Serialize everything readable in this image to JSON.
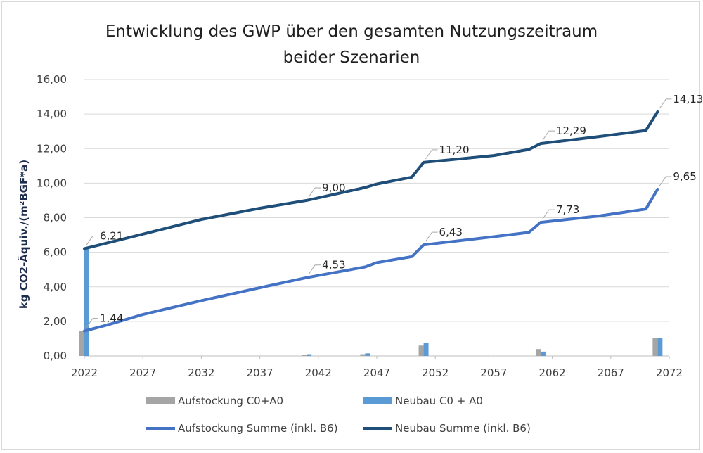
{
  "chart_data": {
    "type": "line",
    "title_lines": [
      "Entwicklung des GWP über den gesamten Nutzungszeitraum",
      "beider Szenarien"
    ],
    "ylabel": "kg CO2-Äquiv./(m²BGF*a)",
    "xlabel": "",
    "ylim": [
      0,
      16
    ],
    "yticks": [
      "0,00",
      "2,00",
      "4,00",
      "6,00",
      "8,00",
      "10,00",
      "12,00",
      "14,00",
      "16,00"
    ],
    "xlim": [
      2022,
      2072
    ],
    "xticks": [
      "2022",
      "2027",
      "2032",
      "2037",
      "2042",
      "2047",
      "2052",
      "2057",
      "2062",
      "2067",
      "2072"
    ],
    "grid": true,
    "legend_position": "bottom",
    "series": [
      {
        "name": "Aufstockung C0+A0",
        "kind": "bar",
        "color": "#a5a5a5",
        "points": [
          [
            2022,
            1.44
          ],
          [
            2041,
            0.05
          ],
          [
            2046,
            0.1
          ],
          [
            2051,
            0.6
          ],
          [
            2061,
            0.4
          ],
          [
            2071,
            1.05
          ]
        ]
      },
      {
        "name": "Neubau C0 + A0",
        "kind": "bar",
        "color": "#5b9bd5",
        "points": [
          [
            2022,
            6.21
          ],
          [
            2041,
            0.1
          ],
          [
            2046,
            0.15
          ],
          [
            2051,
            0.75
          ],
          [
            2061,
            0.25
          ],
          [
            2071,
            1.05
          ]
        ]
      },
      {
        "name": "Aufstockung Summe (inkl. B6)",
        "kind": "line",
        "color": "#4472c4",
        "points": [
          [
            2022,
            1.44
          ],
          [
            2024,
            1.8
          ],
          [
            2027,
            2.4
          ],
          [
            2032,
            3.2
          ],
          [
            2037,
            3.95
          ],
          [
            2041,
            4.53
          ],
          [
            2046,
            5.15
          ],
          [
            2047,
            5.4
          ],
          [
            2050,
            5.75
          ],
          [
            2051,
            6.43
          ],
          [
            2057,
            6.9
          ],
          [
            2060,
            7.15
          ],
          [
            2061,
            7.73
          ],
          [
            2066,
            8.1
          ],
          [
            2070,
            8.5
          ],
          [
            2071,
            9.65
          ]
        ],
        "labels": [
          {
            "x": 2022,
            "text": "1,44"
          },
          {
            "x": 2041,
            "text": "4,53"
          },
          {
            "x": 2051,
            "text": "6,43"
          },
          {
            "x": 2061,
            "text": "7,73"
          },
          {
            "x": 2071,
            "text": "9,65"
          }
        ]
      },
      {
        "name": "Neubau Summe (inkl. B6)",
        "kind": "line",
        "color": "#1f4e79",
        "points": [
          [
            2022,
            6.21
          ],
          [
            2027,
            7.05
          ],
          [
            2032,
            7.9
          ],
          [
            2037,
            8.55
          ],
          [
            2041,
            9.0
          ],
          [
            2046,
            9.75
          ],
          [
            2047,
            9.95
          ],
          [
            2050,
            10.35
          ],
          [
            2051,
            11.2
          ],
          [
            2057,
            11.6
          ],
          [
            2060,
            11.95
          ],
          [
            2061,
            12.29
          ],
          [
            2066,
            12.7
          ],
          [
            2070,
            13.05
          ],
          [
            2071,
            14.13
          ]
        ],
        "labels": [
          {
            "x": 2022,
            "text": "6,21"
          },
          {
            "x": 2041,
            "text": "9,00"
          },
          {
            "x": 2051,
            "text": "11,20"
          },
          {
            "x": 2061,
            "text": "12,29"
          },
          {
            "x": 2071,
            "text": "14,13"
          }
        ]
      }
    ]
  }
}
